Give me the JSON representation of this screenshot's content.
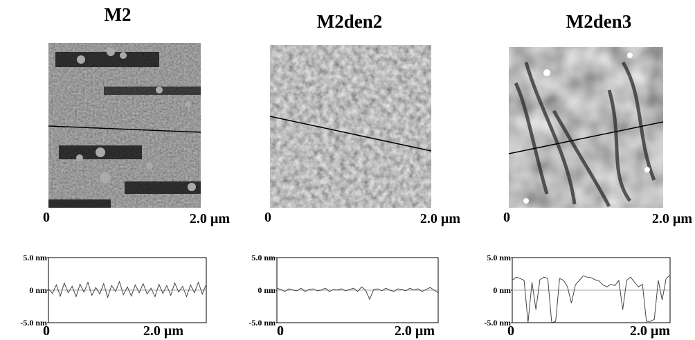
{
  "chart_data": [
    {
      "type": "line",
      "title": "M2",
      "image_labels": [
        "0",
        "2.0 µm"
      ],
      "x": [
        0,
        0.05,
        0.1,
        0.15,
        0.2,
        0.25,
        0.3,
        0.35,
        0.4,
        0.45,
        0.5,
        0.55,
        0.6,
        0.65,
        0.7,
        0.75,
        0.8,
        0.85,
        0.9,
        0.95,
        1.0,
        1.05,
        1.1,
        1.15,
        1.2,
        1.25,
        1.3,
        1.35,
        1.4,
        1.45,
        1.5,
        1.55,
        1.6,
        1.65,
        1.7,
        1.75,
        1.8,
        1.85,
        1.9,
        1.95,
        2.0
      ],
      "series": [
        {
          "color": "#444444",
          "values": [
            0.2,
            -0.5,
            0.8,
            -0.9,
            1.1,
            -0.4,
            0.6,
            -1.0,
            0.9,
            -0.3,
            1.2,
            -0.8,
            0.4,
            -0.6,
            1.0,
            -1.1,
            0.7,
            -0.2,
            1.3,
            -0.7,
            0.5,
            -0.9,
            0.8,
            -0.4,
            1.0,
            -0.6,
            0.3,
            -1.0,
            0.9,
            -0.5,
            0.7,
            -0.8,
            1.1,
            -0.3,
            0.6,
            -1.0,
            0.8,
            -0.4,
            1.2,
            -0.6,
            0.9
          ]
        }
      ],
      "xlim": [
        0,
        2.0
      ],
      "xticks": [
        0,
        {
          "value": 2.0,
          "label": "2.0 µm"
        }
      ],
      "ylim": [
        -5,
        5
      ],
      "yticks": [
        {
          "value": 5,
          "label": "5.0 nm"
        },
        {
          "value": 0,
          "label": "0 nm"
        },
        {
          "value": -5,
          "label": "-5.0 nm"
        }
      ],
      "zero_line": true
    },
    {
      "type": "line",
      "title": "M2den2",
      "image_labels": [
        "0",
        "2.0 µm"
      ],
      "x": [
        0,
        0.05,
        0.1,
        0.15,
        0.2,
        0.25,
        0.3,
        0.35,
        0.4,
        0.45,
        0.5,
        0.55,
        0.6,
        0.65,
        0.7,
        0.75,
        0.8,
        0.85,
        0.9,
        0.95,
        1.0,
        1.05,
        1.1,
        1.15,
        1.2,
        1.25,
        1.3,
        1.35,
        1.4,
        1.45,
        1.5,
        1.55,
        1.6,
        1.65,
        1.7,
        1.75,
        1.8,
        1.85,
        1.9,
        1.95,
        2.0
      ],
      "series": [
        {
          "color": "#444444",
          "values": [
            0.3,
            0.1,
            -0.2,
            0.2,
            0.0,
            -0.1,
            0.3,
            -0.2,
            0.1,
            0.2,
            -0.1,
            0.0,
            0.3,
            -0.2,
            0.1,
            0.0,
            0.2,
            -0.1,
            0.1,
            0.3,
            -0.2,
            0.5,
            0.0,
            -1.4,
            0.1,
            0.2,
            -0.1,
            0.3,
            0.0,
            -0.2,
            0.2,
            0.1,
            -0.1,
            0.3,
            0.0,
            0.2,
            -0.2,
            0.1,
            0.4,
            0.0,
            -0.4
          ]
        }
      ],
      "xlim": [
        0,
        2.0
      ],
      "xticks": [
        0,
        {
          "value": 2.0,
          "label": "2.0 µm"
        }
      ],
      "ylim": [
        -5,
        5
      ],
      "yticks": [
        {
          "value": 5,
          "label": "5.0 nm"
        },
        {
          "value": 0,
          "label": "0 nm"
        },
        {
          "value": -5,
          "label": "-5.0 nm"
        }
      ],
      "zero_line": true
    },
    {
      "type": "line",
      "title": "M2den3",
      "image_labels": [
        "0",
        "2.0 µm"
      ],
      "x": [
        0,
        0.05,
        0.1,
        0.15,
        0.2,
        0.25,
        0.3,
        0.35,
        0.4,
        0.45,
        0.5,
        0.55,
        0.6,
        0.65,
        0.7,
        0.75,
        0.8,
        0.85,
        0.9,
        0.95,
        1.0,
        1.05,
        1.1,
        1.15,
        1.2,
        1.25,
        1.3,
        1.35,
        1.4,
        1.45,
        1.5,
        1.55,
        1.6,
        1.65,
        1.7,
        1.75,
        1.8,
        1.85,
        1.9,
        1.95,
        2.0
      ],
      "series": [
        {
          "color": "#444444",
          "values": [
            1.5,
            2.0,
            1.8,
            1.5,
            -5,
            1.2,
            -3,
            1.6,
            2.0,
            1.8,
            -5,
            -4.8,
            1.8,
            1.5,
            0.5,
            -2,
            0.8,
            1.5,
            2.2,
            2.0,
            1.9,
            1.6,
            1.4,
            0.8,
            0.5,
            0.9,
            0.7,
            1.5,
            -3,
            1.5,
            2.0,
            1.2,
            0.5,
            0.9,
            -4.8,
            -4.8,
            -4.5,
            1.5,
            -1.5,
            1.8,
            2.3
          ]
        }
      ],
      "xlim": [
        0,
        2.0
      ],
      "xticks": [
        0,
        {
          "value": 2.0,
          "label": "2.0 µm"
        }
      ],
      "ylim": [
        -5,
        5
      ],
      "yticks": [
        {
          "value": 5,
          "label": "5.0 nm"
        },
        {
          "value": 0,
          "label": "0 nm"
        },
        {
          "value": -5,
          "label": "-5.0 nm"
        }
      ],
      "zero_line": true
    }
  ]
}
